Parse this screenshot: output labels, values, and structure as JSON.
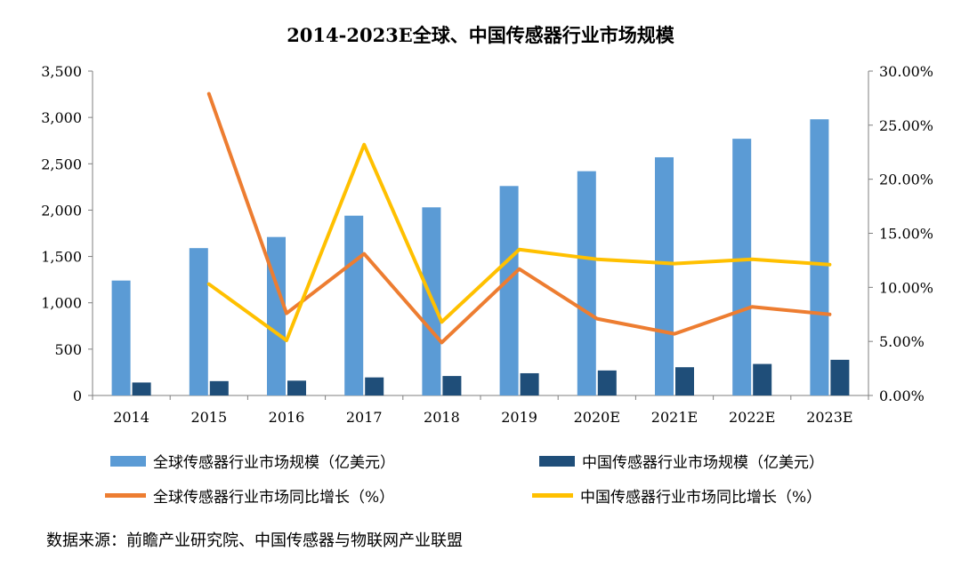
{
  "title": "2014-2023E全球、中国传感器行业市场规模",
  "source": "数据来源：前瞻产业研究院、中国传感器与物联网产业联盟",
  "colors": {
    "global_bar": "#5b9bd5",
    "china_bar": "#1f4e79",
    "global_line": "#ed7d31",
    "china_line": "#ffc000",
    "axis": "#7f7f7f"
  },
  "legend": {
    "global_size": "全球传感器行业市场规模（亿美元）",
    "china_size": "中国传感器行业市场规模（亿美元）",
    "global_growth": "全球传感器行业市场同比增长（%）",
    "china_growth": "中国传感器行业市场同比增长（%）"
  },
  "chart_data": {
    "type": "bar",
    "title": "2014-2023E全球、中国传感器行业市场规模",
    "categories": [
      "2014",
      "2015",
      "2016",
      "2017",
      "2018",
      "2019",
      "2020E",
      "2021E",
      "2022E",
      "2023E"
    ],
    "y_left": {
      "range": [
        0,
        3500
      ],
      "ticks": [
        "0",
        "500",
        "1,000",
        "1,500",
        "2,000",
        "2,500",
        "3,000",
        "3,500"
      ]
    },
    "y_right": {
      "range": [
        0,
        30
      ],
      "ticks": [
        "0.00%",
        "5.00%",
        "10.00%",
        "15.00%",
        "20.00%",
        "25.00%",
        "30.00%"
      ]
    },
    "series": [
      {
        "name": "全球传感器行业市场规模（亿美元）",
        "type": "bar",
        "axis": "left",
        "values": [
          1240,
          1590,
          1710,
          1940,
          2030,
          2260,
          2420,
          2570,
          2770,
          2980
        ]
      },
      {
        "name": "中国传感器行业市场规模（亿美元）",
        "type": "bar",
        "axis": "left",
        "values": [
          140,
          155,
          160,
          195,
          210,
          240,
          270,
          305,
          340,
          385
        ]
      },
      {
        "name": "全球传感器行业市场同比增长（%）",
        "type": "line",
        "axis": "right",
        "values": [
          null,
          27.9,
          7.6,
          13.1,
          4.9,
          11.7,
          7.1,
          5.7,
          8.2,
          7.5
        ]
      },
      {
        "name": "中国传感器行业市场同比增长（%）",
        "type": "line",
        "axis": "right",
        "values": [
          null,
          10.3,
          5.1,
          23.2,
          6.8,
          13.5,
          12.6,
          12.2,
          12.6,
          12.1
        ]
      }
    ],
    "grid": false,
    "legend_position": "bottom"
  }
}
